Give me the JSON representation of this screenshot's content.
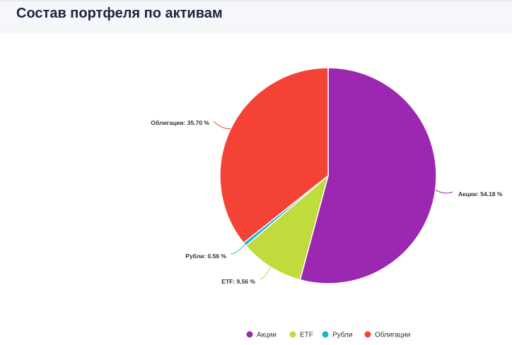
{
  "title": "Состав портфеля по активам",
  "chart_data": {
    "type": "pie",
    "title": "",
    "slices": [
      {
        "name": "Акции",
        "value": 54.18,
        "label": "Акции: 54.18 %",
        "color": "#9c27b0"
      },
      {
        "name": "ETF",
        "value": 9.56,
        "label": "ETF: 9.56 %",
        "color": "#c0dc3c"
      },
      {
        "name": "Рубли",
        "value": 0.56,
        "label": "Рубли: 0.56 %",
        "color": "#1bb0d4"
      },
      {
        "name": "Облигации",
        "value": 35.7,
        "label": "Облигации: 35.70 %",
        "color": "#f44336"
      }
    ],
    "legend": {
      "placement": "bottom-center"
    }
  }
}
